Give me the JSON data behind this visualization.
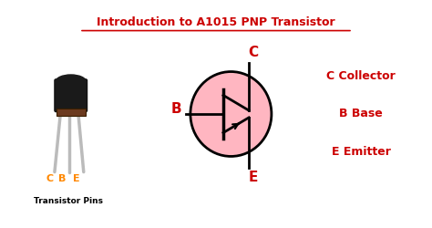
{
  "title": "Introduction to A1015 PNP Transistor",
  "title_color": "#cc0000",
  "background_color": "#ffffff",
  "border_color": "#cc0000",
  "transistor_pin_label": "Transistor Pins",
  "pin_labels": [
    "C",
    "B",
    "E"
  ],
  "pin_label_color": "#ff8800",
  "legend_lines": [
    "C Collector",
    "B Base",
    "E Emitter"
  ],
  "legend_color": "#cc0000",
  "symbol_color": "#000000",
  "circle_fill": "#ffb6c1",
  "label_C": "C",
  "label_B": "B",
  "label_E": "E"
}
